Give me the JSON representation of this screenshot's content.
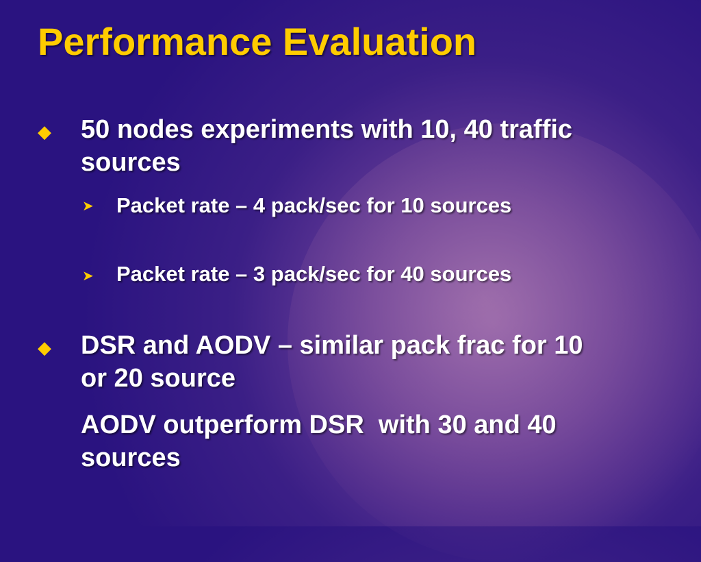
{
  "title": "Performance Evaluation",
  "bullets": [
    {
      "text": "50 nodes experiments with 10, 40 traffic sources",
      "sub": [
        "Packet rate – 4 pack/sec for 10 sources",
        "Packet rate – 3 pack/sec for 40 sources"
      ]
    },
    {
      "text": "DSR and AODV – similar pack frac for 10 or 20 source",
      "continuation": "AODV outperform DSR  with 30 and 40 sources"
    }
  ]
}
